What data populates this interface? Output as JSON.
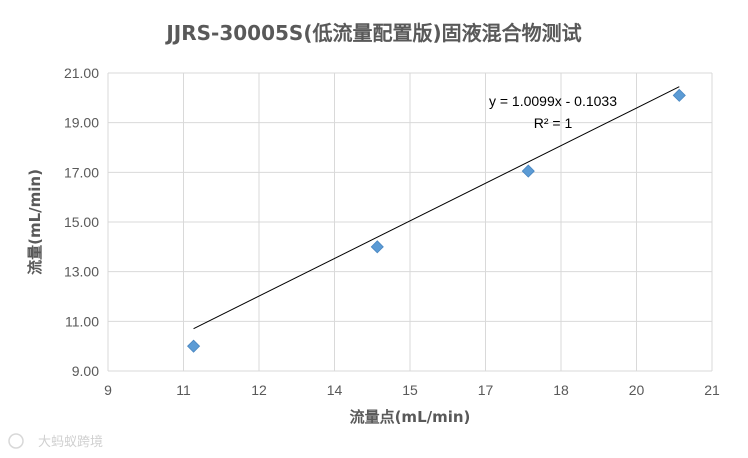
{
  "chart_data": {
    "type": "scatter",
    "title": "JJRS-30005S(低流量配置版)固液混合物测试",
    "xlabel": "流量点(mL/min)",
    "ylabel": "流量(mL/min)",
    "xlim": [
      9,
      21
    ],
    "ylim": [
      9,
      21
    ],
    "x_ticks": [
      "9",
      "11",
      "12",
      "14",
      "15",
      "17",
      "18",
      "20",
      "21"
    ],
    "x_tick_values": [
      9,
      10.5,
      12,
      13.5,
      15,
      16.5,
      18,
      19.5,
      21
    ],
    "y_ticks": [
      "9.00",
      "11.00",
      "13.00",
      "15.00",
      "17.00",
      "19.00",
      "21.00"
    ],
    "y_tick_values": [
      9,
      11,
      13,
      15,
      17,
      19,
      21
    ],
    "grid": true,
    "series": [
      {
        "x": [
          10.7,
          14.35,
          17.35,
          20.35
        ],
        "y": [
          10.0,
          14.0,
          17.05,
          20.1
        ],
        "marker": "diamond",
        "color": "#5B9BD5"
      }
    ],
    "trendline": {
      "slope": 1.0099,
      "intercept": -0.1033,
      "x_range": [
        10.7,
        20.35
      ],
      "equation": "y = 1.0099x - 0.1033",
      "r_squared": "R² = 1",
      "color": "#000000"
    }
  },
  "watermark": "大蚂蚁跨境"
}
